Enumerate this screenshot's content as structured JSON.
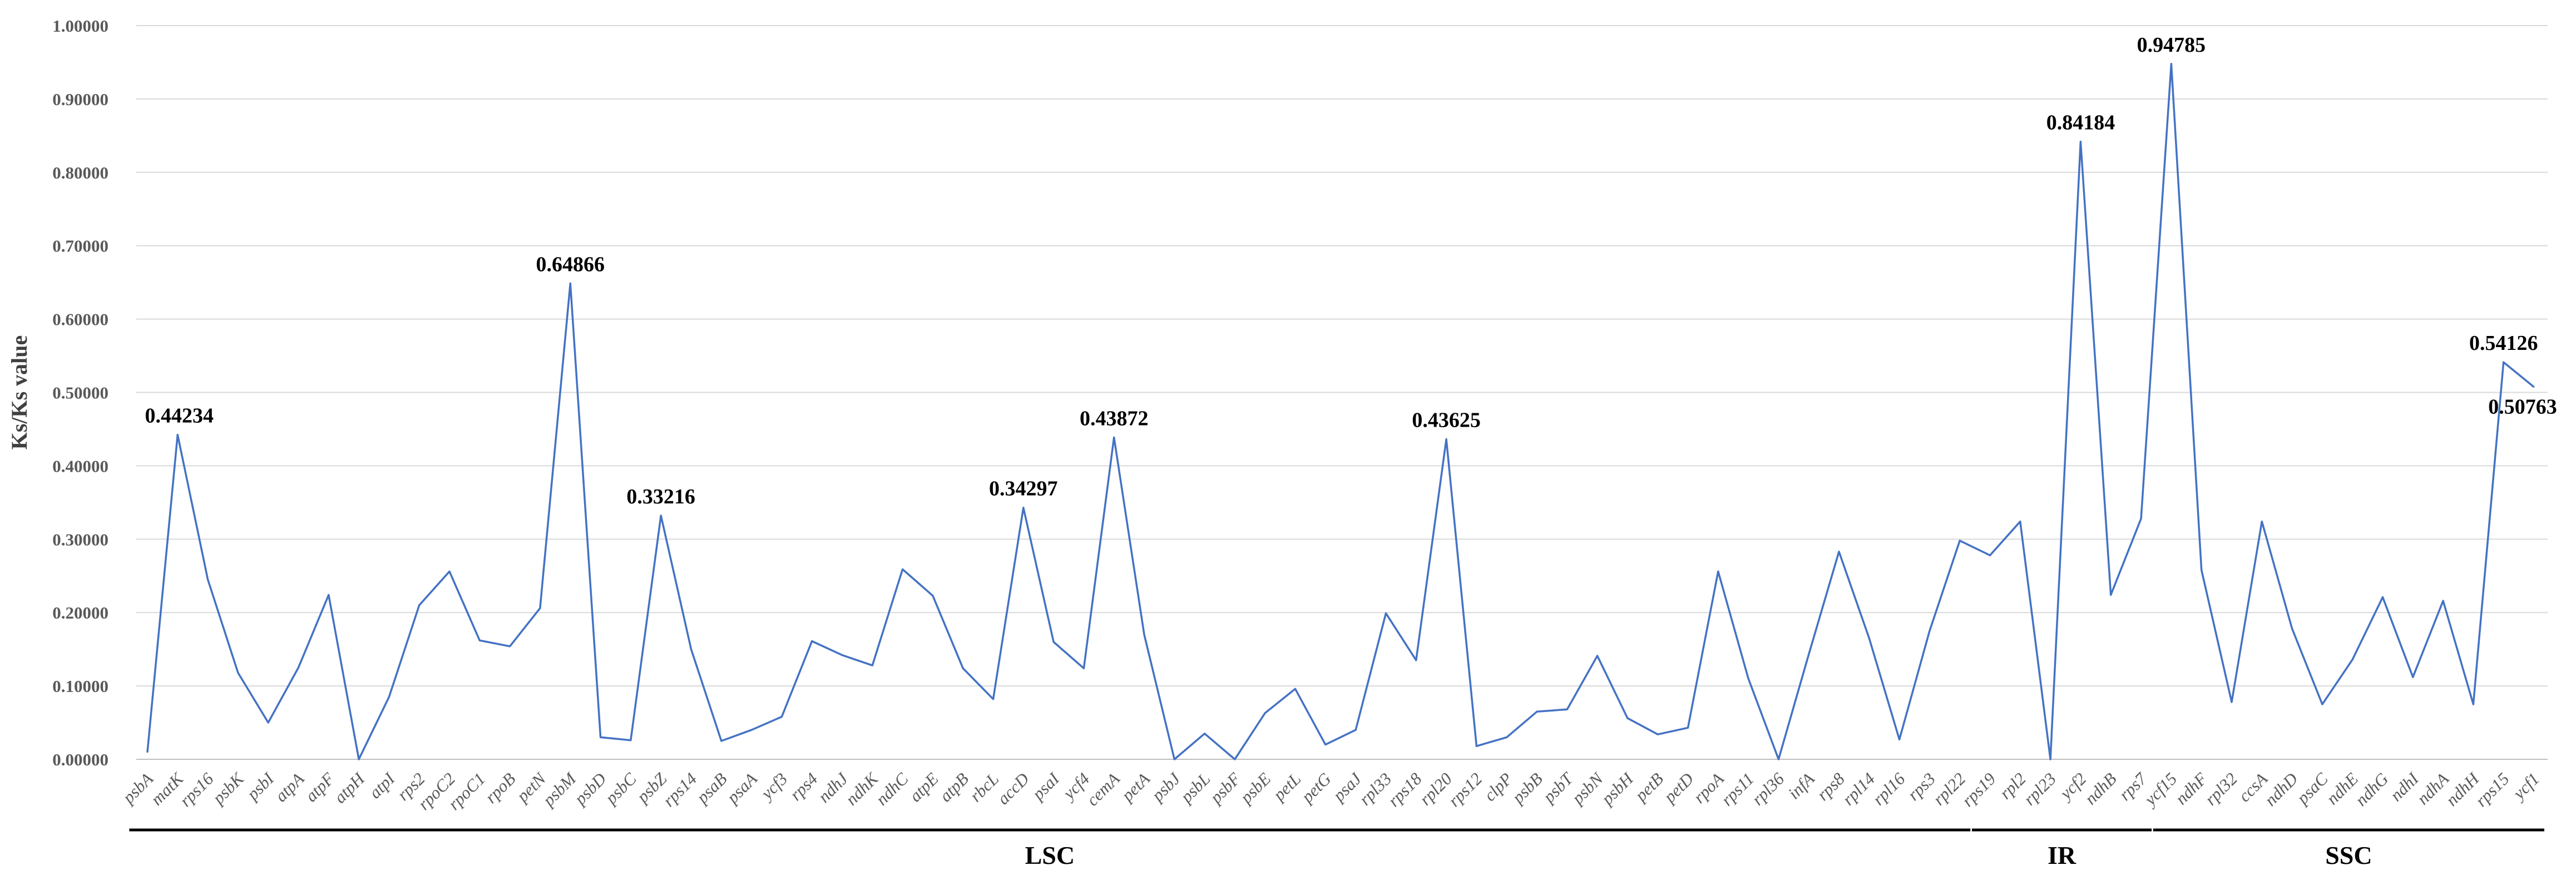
{
  "chart_data": {
    "type": "line",
    "ylabel": "Ks/Ks value",
    "ylim": [
      0,
      1
    ],
    "yticks": [
      "0.00000",
      "0.10000",
      "0.20000",
      "0.30000",
      "0.40000",
      "0.50000",
      "0.60000",
      "0.70000",
      "0.80000",
      "0.90000",
      "1.00000"
    ],
    "grid": true,
    "categories": [
      "psbA",
      "matK",
      "rps16",
      "psbK",
      "psbI",
      "atpA",
      "atpF",
      "atpH",
      "atpI",
      "rps2",
      "rpoC2",
      "rpoC1",
      "rpoB",
      "petN",
      "psbM",
      "psbD",
      "psbC",
      "psbZ",
      "rps14",
      "psaB",
      "psaA",
      "ycf3",
      "rps4",
      "ndhJ",
      "ndhK",
      "ndhC",
      "atpE",
      "atpB",
      "rbcL",
      "accD",
      "psaI",
      "ycf4",
      "cemA",
      "petA",
      "psbJ",
      "psbL",
      "psbF",
      "psbE",
      "petL",
      "petG",
      "psaJ",
      "rpl33",
      "rps18",
      "rpl20",
      "rps12",
      "clpP",
      "psbB",
      "psbT",
      "psbN",
      "psbH",
      "petB",
      "petD",
      "rpoA",
      "rps11",
      "rpl36",
      "infA",
      "rps8",
      "rpl14",
      "rpl16",
      "rps3",
      "rpl22",
      "rps19",
      "rpl2",
      "rpl23",
      "ycf2",
      "ndhB",
      "rps7",
      "ycf15",
      "ndhF",
      "rpl32",
      "ccsA",
      "ndhD",
      "psaC",
      "ndhE",
      "ndhG",
      "ndhI",
      "ndhA",
      "ndhH",
      "rps15",
      "ycf1"
    ],
    "series": [
      {
        "values": [
          0.01,
          0.44234,
          0.245,
          0.118,
          0.05,
          0.125,
          0.224,
          0.0,
          0.085,
          0.21,
          0.256,
          0.162,
          0.154,
          0.206,
          0.64866,
          0.03,
          0.026,
          0.33216,
          0.15,
          0.025,
          0.04,
          0.058,
          0.161,
          0.142,
          0.128,
          0.259,
          0.223,
          0.124,
          0.082,
          0.34297,
          0.16,
          0.124,
          0.43872,
          0.17,
          0.0,
          0.035,
          0.0,
          0.063,
          0.096,
          0.02,
          0.04,
          0.199,
          0.135,
          0.43625,
          0.018,
          0.03,
          0.065,
          0.068,
          0.141,
          0.056,
          0.034,
          0.043,
          0.256,
          0.11,
          0.0,
          0.143,
          0.283,
          0.165,
          0.027,
          0.175,
          0.298,
          0.278,
          0.324,
          0.0,
          0.84184,
          0.224,
          0.328,
          0.94785,
          0.258,
          0.078,
          0.324,
          0.178,
          0.075,
          0.136,
          0.221,
          0.112,
          0.216,
          0.075,
          0.54126,
          0.50763
        ]
      }
    ],
    "annotations": [
      "0.44234",
      "0.64866",
      "0.33216",
      "0.34297",
      "0.43872",
      "0.43625",
      "0.84184",
      "0.94785",
      "0.54126",
      "0.50763"
    ],
    "annotation_indices": [
      1,
      14,
      17,
      29,
      32,
      43,
      64,
      67,
      78,
      79
    ],
    "regions": [
      {
        "label": "LSC",
        "start": 0,
        "end": 60
      },
      {
        "label": "IR",
        "start": 61,
        "end": 66
      },
      {
        "label": "SSC",
        "start": 67,
        "end": 79
      }
    ],
    "colors": {
      "series": "#4472c4"
    }
  }
}
